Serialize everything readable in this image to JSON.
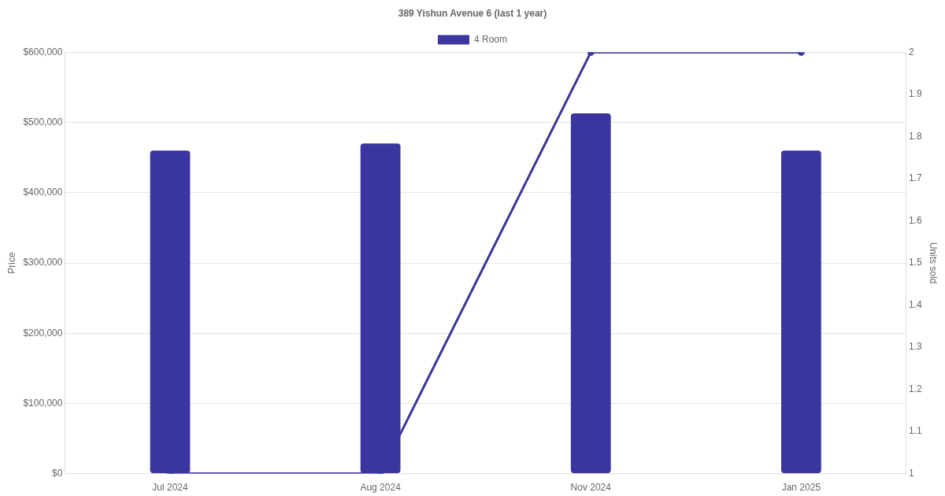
{
  "chart_data": {
    "type": "bar",
    "title": "389 Yishun Avenue 6 (last 1 year)",
    "categories": [
      "Jul 2024",
      "Aug 2024",
      "Nov 2024",
      "Jan 2025"
    ],
    "series": [
      {
        "name": "4 Room",
        "color": "#3a35a0",
        "values": [
          460000,
          470000,
          513000,
          460000
        ]
      },
      {
        "type": "line",
        "axis": "y2",
        "color": "#3a35a0",
        "values": [
          1,
          1,
          2,
          2
        ],
        "marker": "circle"
      }
    ],
    "ylabel": "Price",
    "y2label": "Units sold",
    "ylim": [
      0,
      600000
    ],
    "yticks": [
      {
        "value": 0,
        "label": "$0"
      },
      {
        "value": 100000,
        "label": "$100,000"
      },
      {
        "value": 200000,
        "label": "$200,000"
      },
      {
        "value": 300000,
        "label": "$300,000"
      },
      {
        "value": 400000,
        "label": "$400,000"
      },
      {
        "value": 500000,
        "label": "$500,000"
      },
      {
        "value": 600000,
        "label": "$600,000"
      }
    ],
    "y2lim": [
      1,
      2
    ],
    "y2ticks": [
      1,
      1.1,
      1.2,
      1.3,
      1.4,
      1.5,
      1.6,
      1.7,
      1.8,
      1.9,
      2
    ],
    "grid": "y",
    "legend": "top"
  }
}
